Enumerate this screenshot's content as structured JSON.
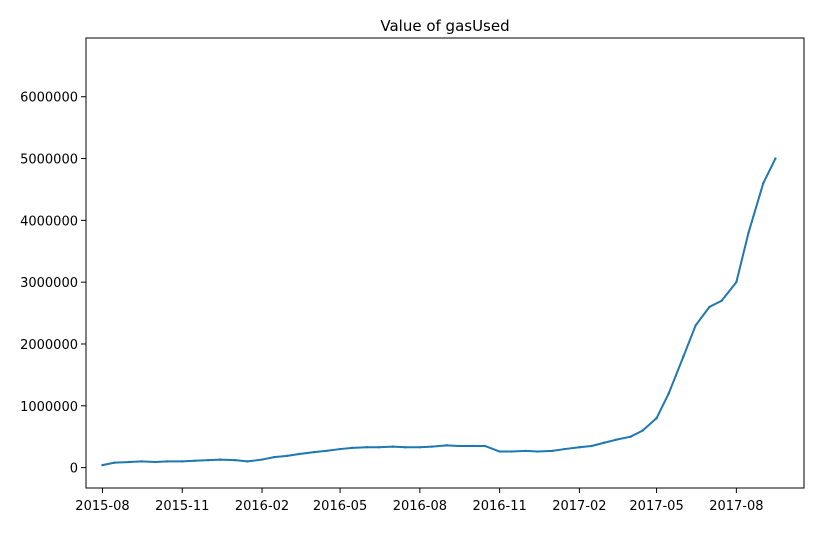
{
  "chart_data": {
    "type": "line",
    "title": "Value of gasUsed",
    "xlabel": "",
    "ylabel": "",
    "x_tick_labels": [
      "2015-08",
      "2015-11",
      "2016-02",
      "2016-05",
      "2016-08",
      "2016-11",
      "2017-02",
      "2017-05",
      "2017-08"
    ],
    "y_tick_labels": [
      "0",
      "1000000",
      "2000000",
      "3000000",
      "4000000",
      "5000000",
      "6000000"
    ],
    "y_ticks": [
      0,
      1000000,
      2000000,
      3000000,
      4000000,
      5000000,
      6000000
    ],
    "ylim": [
      -330000,
      6950000
    ],
    "xlim": [
      "2015-07-13",
      "2017-10-18"
    ],
    "grid": false,
    "legend": "none",
    "line_color": "#1f77b4",
    "series": [
      {
        "x": [
          "2015-08-01",
          "2015-08-15",
          "2015-09-01",
          "2015-09-15",
          "2015-10-01",
          "2015-10-15",
          "2015-11-01",
          "2015-11-15",
          "2015-12-01",
          "2015-12-15",
          "2016-01-01",
          "2016-01-15",
          "2016-02-01",
          "2016-02-15",
          "2016-03-01",
          "2016-03-15",
          "2016-04-01",
          "2016-04-15",
          "2016-05-01",
          "2016-05-15",
          "2016-06-01",
          "2016-06-15",
          "2016-07-01",
          "2016-07-15",
          "2016-08-01",
          "2016-08-15",
          "2016-09-01",
          "2016-09-15",
          "2016-10-01",
          "2016-10-15",
          "2016-11-01",
          "2016-11-15",
          "2016-12-01",
          "2016-12-15",
          "2017-01-01",
          "2017-01-15",
          "2017-02-01",
          "2017-02-15",
          "2017-03-01",
          "2017-03-15",
          "2017-04-01",
          "2017-04-15",
          "2017-05-01",
          "2017-05-15",
          "2017-06-01",
          "2017-06-15",
          "2017-07-01",
          "2017-07-15",
          "2017-08-01",
          "2017-08-15",
          "2017-09-01",
          "2017-09-15"
        ],
        "values": [
          40000,
          80000,
          90000,
          100000,
          90000,
          100000,
          100000,
          110000,
          120000,
          130000,
          120000,
          100000,
          130000,
          170000,
          190000,
          220000,
          250000,
          270000,
          300000,
          320000,
          330000,
          330000,
          340000,
          330000,
          330000,
          340000,
          360000,
          350000,
          350000,
          350000,
          260000,
          260000,
          270000,
          260000,
          270000,
          300000,
          330000,
          350000,
          400000,
          450000,
          500000,
          600000,
          800000,
          1200000,
          1800000,
          2300000,
          2600000,
          2700000,
          3000000,
          3800000,
          4600000,
          5000000
        ]
      }
    ]
  }
}
